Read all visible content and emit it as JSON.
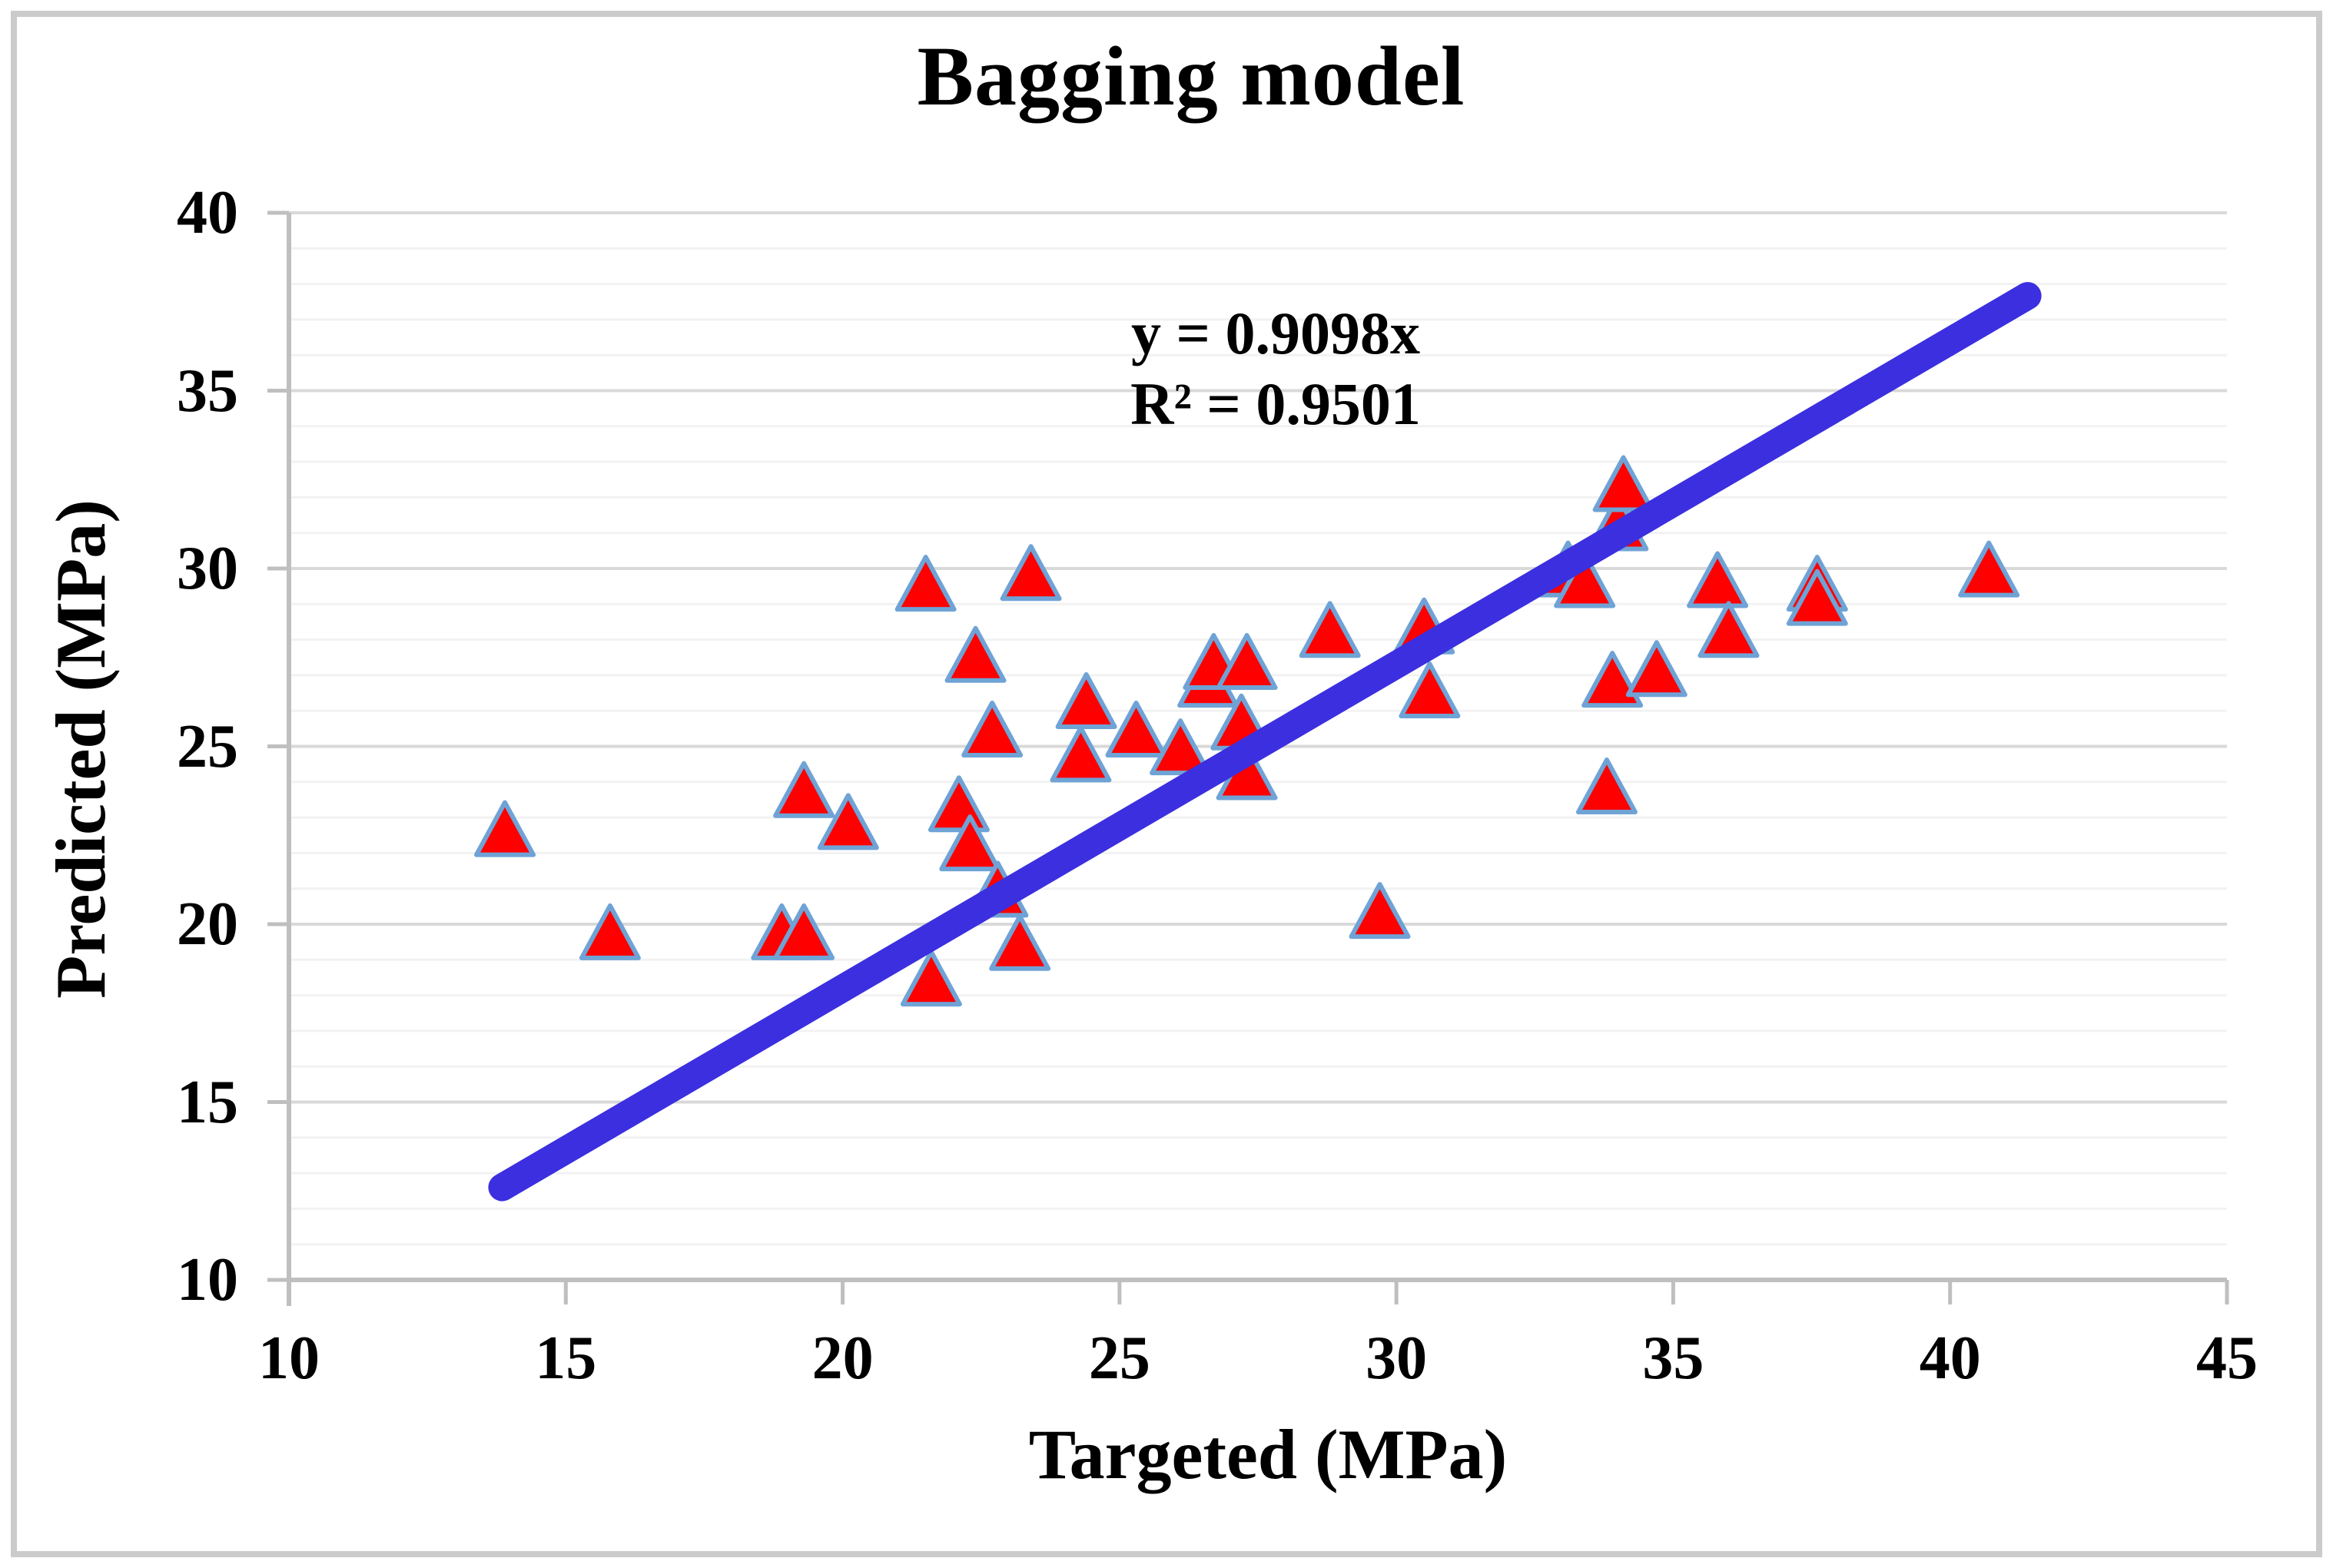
{
  "title": "Bagging model",
  "annotation": {
    "line1": "y = 0.9098x",
    "line2": "R² = 0.9501"
  },
  "chart_data": {
    "type": "scatter",
    "title": "Bagging model",
    "xlabel": "Targeted (MPa)",
    "ylabel": "Predicted (MPa)",
    "xlim": [
      10,
      45
    ],
    "ylim": [
      10,
      40
    ],
    "x_ticks": [
      "10",
      "15",
      "20",
      "25",
      "30",
      "35",
      "40",
      "45"
    ],
    "y_ticks": [
      "10",
      "15",
      "20",
      "25",
      "30",
      "35",
      "40"
    ],
    "minor_grid_step": 1,
    "major_grid_step": 5,
    "grid": "horizontal-only",
    "legend_position": "none",
    "series": [
      {
        "name": "Predicted vs Targeted",
        "marker": "triangle",
        "points": [
          [
            13.9,
            22.6
          ],
          [
            15.8,
            19.7
          ],
          [
            18.9,
            19.7
          ],
          [
            19.3,
            19.7
          ],
          [
            19.3,
            23.7
          ],
          [
            20.1,
            22.8
          ],
          [
            21.5,
            29.5
          ],
          [
            21.6,
            18.4
          ],
          [
            22.1,
            23.3
          ],
          [
            22.3,
            22.2
          ],
          [
            22.4,
            27.5
          ],
          [
            22.7,
            25.4
          ],
          [
            22.8,
            20.9
          ],
          [
            23.2,
            19.4
          ],
          [
            23.4,
            29.8
          ],
          [
            24.3,
            24.7
          ],
          [
            24.4,
            26.2
          ],
          [
            25.3,
            25.4
          ],
          [
            26.1,
            24.9
          ],
          [
            26.6,
            26.8
          ],
          [
            26.7,
            27.3
          ],
          [
            27.2,
            25.6
          ],
          [
            27.3,
            27.3
          ],
          [
            27.3,
            24.2
          ],
          [
            28.8,
            28.2
          ],
          [
            29.7,
            20.3
          ],
          [
            30.5,
            28.3
          ],
          [
            30.6,
            26.5
          ],
          [
            33.1,
            29.9
          ],
          [
            33.4,
            29.6
          ],
          [
            33.8,
            23.8
          ],
          [
            33.9,
            26.8
          ],
          [
            34.0,
            31.2
          ],
          [
            34.1,
            32.3
          ],
          [
            34.7,
            27.1
          ],
          [
            35.8,
            29.6
          ],
          [
            36.0,
            28.2
          ],
          [
            37.6,
            29.5
          ],
          [
            37.6,
            29.1
          ],
          [
            40.7,
            29.9
          ]
        ]
      }
    ],
    "trendline": {
      "equation": "y = 0.9098x",
      "slope": 0.9098,
      "intercept": 0,
      "r_squared": 0.9501,
      "x_start": 13.85,
      "x_end": 41.4
    },
    "colors": {
      "marker_fill": "#fe0000",
      "marker_stroke": "#6fa3d6",
      "trendline": "#3b2fdf",
      "axis": "#bfbfbf",
      "major_grid": "#d9d9d9",
      "minor_grid": "#f2f2f2",
      "text": "#000000",
      "background": "#ffffff",
      "frame_border": "#cbcbcb"
    }
  }
}
